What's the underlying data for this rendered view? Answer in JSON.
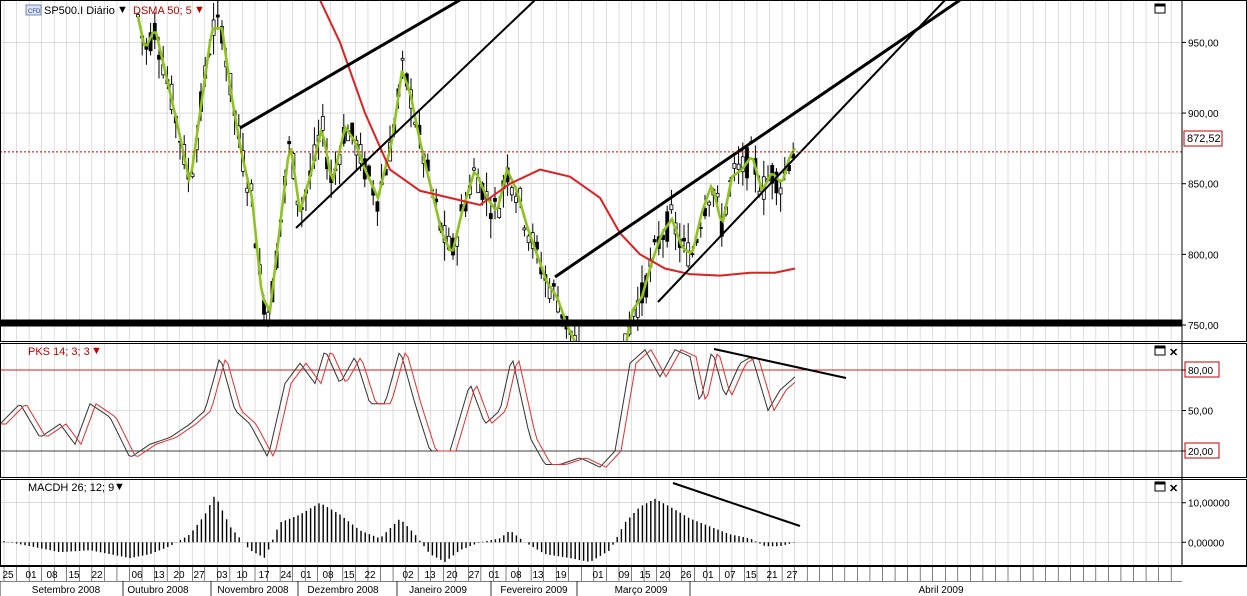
{
  "panels": {
    "price": {
      "symbol_label": "SP500.I Diário",
      "cfd_badge": "CFD",
      "indicator_label": "DSMA 50; 5",
      "y_ticks": [
        "950,00",
        "900,00",
        "850,00",
        "800,00",
        "750,00"
      ],
      "y_tick_values": [
        950,
        900,
        850,
        800,
        750
      ],
      "last_value_label": "872,52",
      "last_value": 872.52,
      "ylim": [
        738,
        980
      ]
    },
    "stochastic": {
      "indicator_label": "PKS 14; 3; 3",
      "y_ticks": [
        "80,00",
        "50,00",
        "20,00"
      ],
      "y_tick_values": [
        80,
        50,
        20
      ],
      "ylim": [
        0,
        100
      ]
    },
    "macd": {
      "indicator_label": "MACDH 26; 12; 9",
      "y_ticks": [
        "10,00000",
        "0,00000"
      ],
      "y_tick_values": [
        10,
        0
      ],
      "ylim": [
        -6,
        16
      ]
    }
  },
  "x_axis": {
    "day_labels": [
      "25",
      "01",
      "08",
      "15",
      "22",
      "06",
      "13",
      "20",
      "27",
      "03",
      "10",
      "17",
      "24",
      "01",
      "08",
      "15",
      "22",
      "02",
      "13",
      "20",
      "27",
      "01",
      "08",
      "13",
      "19",
      "01",
      "09",
      "15",
      "20",
      "26",
      "01",
      "07",
      "15",
      "21",
      "27"
    ],
    "month_labels": [
      "Setembro 2008",
      "Outubro 2008",
      "Novembro 2008",
      "Dezembro 2008",
      "Janeiro 2009",
      "Fevereiro 2009",
      "Março 2009",
      "Abril 2009"
    ]
  },
  "colors": {
    "candle": "#000000",
    "ma_green": "#8fc31f",
    "ma_red": "#e02020",
    "stoch_k": "#333333",
    "stoch_d": "#e03030",
    "level_line": "#d02020",
    "grid": "#c8c8c8"
  },
  "chart_data": [
    {
      "type": "candlestick",
      "title": "SP500.I Diário",
      "series": [
        {
          "name": "DSMA 50; 5",
          "type": "line"
        }
      ],
      "ylim": [
        738,
        980
      ],
      "trendlines": true
    },
    {
      "type": "line",
      "title": "PKS 14; 3; 3",
      "ylim": [
        0,
        100
      ],
      "levels": [
        80,
        50,
        20
      ]
    },
    {
      "type": "bar",
      "title": "MACDH 26; 12; 9",
      "ylim": [
        -6,
        16
      ]
    }
  ]
}
